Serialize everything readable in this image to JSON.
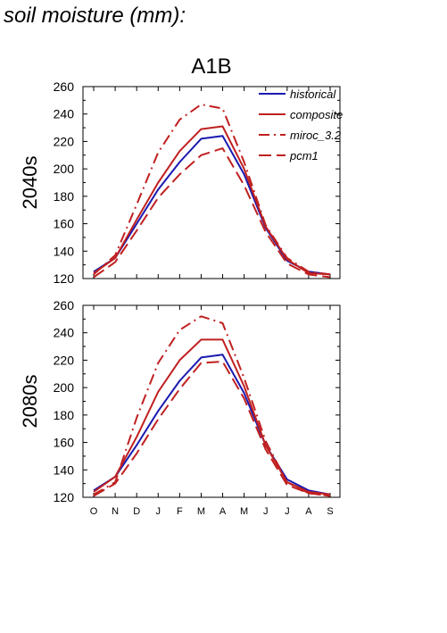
{
  "page_title": "soil moisture (mm):",
  "chart_data": [
    {
      "type": "line",
      "title": "A1B",
      "ylabel": "2040s",
      "ylim": [
        120,
        260
      ],
      "yticks": [
        120,
        140,
        160,
        180,
        200,
        220,
        240,
        260
      ],
      "categories": [
        "O",
        "N",
        "D",
        "J",
        "F",
        "M",
        "A",
        "M",
        "J",
        "J",
        "A",
        "S"
      ],
      "series": [
        {
          "name": "historical",
          "color": "#1a1ab0",
          "dash": "solid",
          "values": [
            125,
            135,
            160,
            185,
            205,
            222,
            224,
            196,
            157,
            133,
            125,
            123
          ]
        },
        {
          "name": "composite",
          "color": "#c02020",
          "dash": "solid",
          "values": [
            124,
            135,
            163,
            190,
            213,
            229,
            231,
            200,
            158,
            134,
            124,
            123
          ]
        },
        {
          "name": "miroc_3.2",
          "color": "#c02020",
          "dash": "dashdot",
          "values": [
            123,
            137,
            174,
            212,
            236,
            247,
            244,
            205,
            159,
            135,
            125,
            123
          ]
        },
        {
          "name": "pcm1",
          "color": "#c02020",
          "dash": "dash",
          "values": [
            121,
            132,
            155,
            179,
            196,
            210,
            215,
            188,
            154,
            131,
            123,
            121
          ]
        }
      ]
    },
    {
      "type": "line",
      "title": "",
      "ylabel": "2080s",
      "ylim": [
        120,
        260
      ],
      "yticks": [
        120,
        140,
        160,
        180,
        200,
        220,
        240,
        260
      ],
      "categories": [
        "O",
        "N",
        "D",
        "J",
        "F",
        "M",
        "A",
        "M",
        "J",
        "J",
        "A",
        "S"
      ],
      "series": [
        {
          "name": "historical",
          "color": "#1a1ab0",
          "dash": "solid",
          "values": [
            125,
            135,
            158,
            183,
            205,
            222,
            224,
            196,
            158,
            133,
            125,
            122
          ]
        },
        {
          "name": "composite",
          "color": "#c02020",
          "dash": "solid",
          "values": [
            124,
            135,
            164,
            197,
            220,
            235,
            235,
            201,
            158,
            131,
            124,
            122
          ]
        },
        {
          "name": "miroc_3.2",
          "color": "#c02020",
          "dash": "dashdot",
          "values": [
            122,
            131,
            178,
            218,
            242,
            252,
            247,
            207,
            161,
            131,
            123,
            121
          ]
        },
        {
          "name": "pcm1",
          "color": "#c02020",
          "dash": "dash",
          "values": [
            121,
            130,
            152,
            177,
            199,
            218,
            219,
            192,
            155,
            129,
            123,
            121
          ]
        }
      ]
    }
  ]
}
